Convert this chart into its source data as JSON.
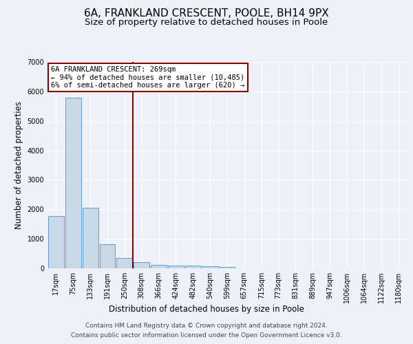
{
  "title": "6A, FRANKLAND CRESCENT, POOLE, BH14 9PX",
  "subtitle": "Size of property relative to detached houses in Poole",
  "xlabel": "Distribution of detached houses by size in Poole",
  "ylabel": "Number of detached properties",
  "bin_labels": [
    "17sqm",
    "75sqm",
    "133sqm",
    "191sqm",
    "250sqm",
    "308sqm",
    "366sqm",
    "424sqm",
    "482sqm",
    "540sqm",
    "599sqm",
    "657sqm",
    "715sqm",
    "773sqm",
    "831sqm",
    "889sqm",
    "947sqm",
    "1006sqm",
    "1064sqm",
    "1122sqm",
    "1180sqm"
  ],
  "bar_heights": [
    1780,
    5780,
    2060,
    820,
    360,
    200,
    120,
    100,
    90,
    65,
    55,
    0,
    0,
    0,
    0,
    0,
    0,
    0,
    0,
    0,
    0
  ],
  "bar_color": "#c9d9e8",
  "bar_edge_color": "#5b9bd5",
  "red_line_bin_index": 4,
  "red_line_color": "#8b0000",
  "annotation_text": "6A FRANKLAND CRESCENT: 269sqm\n← 94% of detached houses are smaller (10,485)\n6% of semi-detached houses are larger (620) →",
  "annotation_box_color": "white",
  "annotation_box_edge_color": "#8b0000",
  "ylim": [
    0,
    7000
  ],
  "yticks": [
    0,
    1000,
    2000,
    3000,
    4000,
    5000,
    6000,
    7000
  ],
  "footer_line1": "Contains HM Land Registry data © Crown copyright and database right 2024.",
  "footer_line2": "Contains public sector information licensed under the Open Government Licence v3.0.",
  "background_color": "#eef2f8",
  "plot_bg_color": "#eef2f8",
  "grid_color": "white",
  "title_fontsize": 11,
  "subtitle_fontsize": 9.5,
  "label_fontsize": 8.5,
  "tick_fontsize": 7,
  "annotation_fontsize": 7.5,
  "footer_fontsize": 6.5
}
